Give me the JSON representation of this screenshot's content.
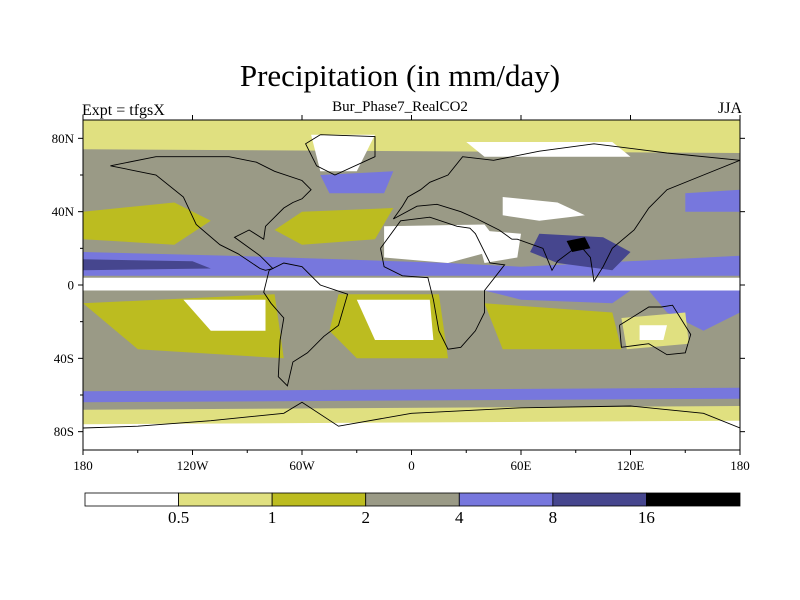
{
  "chart_data": {
    "type": "heatmap",
    "title": "Precipitation (in mm/day)",
    "left_string": "Expt = tfgsX",
    "center_string": "Bur_Phase7_RealCO2",
    "right_string": "JJA",
    "x_axis": {
      "range": [
        -180,
        180
      ],
      "ticks": [
        -180,
        -120,
        -60,
        0,
        60,
        120,
        180
      ],
      "tick_labels": [
        "180",
        "120W",
        "60W",
        "0",
        "60E",
        "120E",
        "180"
      ]
    },
    "y_axis": {
      "range": [
        -90,
        90
      ],
      "ticks": [
        80,
        40,
        0,
        -40,
        -80
      ],
      "tick_labels": [
        "80N",
        "40N",
        "0",
        "40S",
        "80S"
      ]
    },
    "colorbar": {
      "levels": [
        "0.5",
        "1",
        "2",
        "4",
        "8",
        "16"
      ],
      "colors": [
        "#ffffff",
        "#e0e080",
        "#bcbc20",
        "#9a9a86",
        "#7777dd",
        "#46468e",
        "#000000"
      ]
    },
    "base_color": "#9a9a86",
    "regions": [
      {
        "name": "equatorial-dry-band",
        "color": "#ffffff",
        "points": [
          [
            -180,
            4
          ],
          [
            180,
            4
          ],
          [
            180,
            -3
          ],
          [
            -180,
            -3
          ]
        ]
      },
      {
        "name": "itcz-band",
        "color": "#7777dd",
        "points": [
          [
            -180,
            18
          ],
          [
            -100,
            16
          ],
          [
            -40,
            14
          ],
          [
            20,
            12
          ],
          [
            60,
            10
          ],
          [
            180,
            16
          ],
          [
            180,
            5
          ],
          [
            -180,
            5
          ]
        ]
      },
      {
        "name": "itcz-core-pacific",
        "color": "#46468e",
        "points": [
          [
            -180,
            14
          ],
          [
            -120,
            13
          ],
          [
            -110,
            9
          ],
          [
            -180,
            8
          ]
        ]
      },
      {
        "name": "itcz-core-indian",
        "color": "#46468e",
        "points": [
          [
            70,
            28
          ],
          [
            105,
            26
          ],
          [
            120,
            18
          ],
          [
            110,
            8
          ],
          [
            80,
            12
          ],
          [
            65,
            18
          ]
        ]
      },
      {
        "name": "itcz-core-bay",
        "color": "#000000",
        "points": [
          [
            85,
            24
          ],
          [
            95,
            26
          ],
          [
            98,
            20
          ],
          [
            88,
            18
          ]
        ]
      },
      {
        "name": "south-pacific-conv",
        "color": "#7777dd",
        "points": [
          [
            130,
            -3
          ],
          [
            180,
            -3
          ],
          [
            180,
            -15
          ],
          [
            160,
            -25
          ],
          [
            140,
            -15
          ]
        ]
      },
      {
        "name": "south-indian-band",
        "color": "#7777dd",
        "points": [
          [
            40,
            -3
          ],
          [
            120,
            -3
          ],
          [
            110,
            -10
          ],
          [
            60,
            -8
          ]
        ]
      },
      {
        "name": "north-atlantic-dry",
        "color": "#bcbc20",
        "points": [
          [
            -60,
            40
          ],
          [
            -10,
            42
          ],
          [
            -20,
            25
          ],
          [
            -60,
            22
          ],
          [
            -75,
            30
          ]
        ]
      },
      {
        "name": "north-pacific-yellow",
        "color": "#bcbc20",
        "points": [
          [
            -180,
            40
          ],
          [
            -130,
            45
          ],
          [
            -110,
            35
          ],
          [
            -130,
            22
          ],
          [
            -180,
            25
          ]
        ]
      },
      {
        "name": "subtropical-s-atlantic",
        "color": "#bcbc20",
        "points": [
          [
            -40,
            -5
          ],
          [
            15,
            -5
          ],
          [
            20,
            -40
          ],
          [
            -30,
            -40
          ],
          [
            -45,
            -25
          ]
        ]
      },
      {
        "name": "s-atlantic-dry",
        "color": "#ffffff",
        "points": [
          [
            -30,
            -8
          ],
          [
            10,
            -8
          ],
          [
            12,
            -30
          ],
          [
            -20,
            -30
          ]
        ]
      },
      {
        "name": "s-pacific-yellow",
        "color": "#bcbc20",
        "points": [
          [
            -180,
            -10
          ],
          [
            -75,
            -5
          ],
          [
            -70,
            -40
          ],
          [
            -150,
            -35
          ]
        ]
      },
      {
        "name": "s-pacific-dry",
        "color": "#ffffff",
        "points": [
          [
            -125,
            -8
          ],
          [
            -80,
            -8
          ],
          [
            -80,
            -25
          ],
          [
            -110,
            -25
          ]
        ]
      },
      {
        "name": "s-indian-yellow",
        "color": "#bcbc20",
        "points": [
          [
            40,
            -10
          ],
          [
            110,
            -15
          ],
          [
            115,
            -35
          ],
          [
            50,
            -35
          ]
        ]
      },
      {
        "name": "sahara-dry",
        "color": "#ffffff",
        "points": [
          [
            -15,
            32
          ],
          [
            40,
            33
          ],
          [
            50,
            20
          ],
          [
            20,
            12
          ],
          [
            -15,
            15
          ]
        ]
      },
      {
        "name": "arabia-dry",
        "color": "#ffffff",
        "points": [
          [
            35,
            30
          ],
          [
            60,
            28
          ],
          [
            58,
            15
          ],
          [
            40,
            12
          ]
        ]
      },
      {
        "name": "central-asia-dry",
        "color": "#ffffff",
        "points": [
          [
            50,
            48
          ],
          [
            80,
            45
          ],
          [
            95,
            38
          ],
          [
            70,
            35
          ],
          [
            50,
            38
          ]
        ]
      },
      {
        "name": "australia-dry",
        "color": "#e0e080",
        "points": [
          [
            115,
            -18
          ],
          [
            150,
            -15
          ],
          [
            152,
            -32
          ],
          [
            118,
            -35
          ]
        ]
      },
      {
        "name": "australia-core",
        "color": "#ffffff",
        "points": [
          [
            125,
            -22
          ],
          [
            140,
            -22
          ],
          [
            138,
            -30
          ],
          [
            125,
            -30
          ]
        ]
      },
      {
        "name": "southern-storm-track",
        "color": "#7777dd",
        "points": [
          [
            -180,
            -58
          ],
          [
            180,
            -56
          ],
          [
            180,
            -62
          ],
          [
            -180,
            -64
          ]
        ]
      },
      {
        "name": "antarctic-yellow",
        "color": "#e0e080",
        "points": [
          [
            -180,
            -68
          ],
          [
            180,
            -66
          ],
          [
            180,
            -90
          ],
          [
            -180,
            -90
          ]
        ]
      },
      {
        "name": "antarctic-dry",
        "color": "#ffffff",
        "points": [
          [
            -180,
            -76
          ],
          [
            180,
            -74
          ],
          [
            180,
            -90
          ],
          [
            -180,
            -90
          ]
        ]
      },
      {
        "name": "arctic-yellow",
        "color": "#e0e080",
        "points": [
          [
            -180,
            90
          ],
          [
            180,
            90
          ],
          [
            180,
            72
          ],
          [
            -180,
            74
          ]
        ]
      },
      {
        "name": "greenland-dry",
        "color": "#ffffff",
        "points": [
          [
            -55,
            82
          ],
          [
            -20,
            82
          ],
          [
            -30,
            62
          ],
          [
            -50,
            62
          ]
        ]
      },
      {
        "name": "siberia-dry",
        "color": "#ffffff",
        "points": [
          [
            30,
            78
          ],
          [
            110,
            78
          ],
          [
            120,
            70
          ],
          [
            40,
            70
          ]
        ]
      },
      {
        "name": "n-pacific-storm",
        "color": "#7777dd",
        "points": [
          [
            150,
            50
          ],
          [
            180,
            52
          ],
          [
            180,
            40
          ],
          [
            150,
            40
          ]
        ]
      },
      {
        "name": "n-atlantic-storm",
        "color": "#7777dd",
        "points": [
          [
            -50,
            60
          ],
          [
            -10,
            62
          ],
          [
            -15,
            50
          ],
          [
            -45,
            50
          ]
        ]
      }
    ],
    "coastlines": [
      {
        "name": "north-america",
        "points": [
          [
            -165,
            65
          ],
          [
            -140,
            60
          ],
          [
            -125,
            48
          ],
          [
            -118,
            33
          ],
          [
            -105,
            22
          ],
          [
            -95,
            17
          ],
          [
            -83,
            9
          ],
          [
            -80,
            8
          ],
          [
            -76,
            9
          ],
          [
            -83,
            16
          ],
          [
            -90,
            21
          ],
          [
            -97,
            26
          ],
          [
            -89,
            30
          ],
          [
            -81,
            25
          ],
          [
            -80,
            32
          ],
          [
            -70,
            42
          ],
          [
            -65,
            45
          ],
          [
            -60,
            47
          ],
          [
            -55,
            52
          ],
          [
            -60,
            57
          ],
          [
            -75,
            62
          ],
          [
            -85,
            67
          ],
          [
            -100,
            70
          ],
          [
            -120,
            70
          ],
          [
            -140,
            70
          ],
          [
            -165,
            65
          ]
        ]
      },
      {
        "name": "south-america",
        "points": [
          [
            -78,
            8
          ],
          [
            -70,
            12
          ],
          [
            -60,
            10
          ],
          [
            -50,
            0
          ],
          [
            -35,
            -5
          ],
          [
            -40,
            -22
          ],
          [
            -48,
            -28
          ],
          [
            -57,
            -37
          ],
          [
            -65,
            -42
          ],
          [
            -68,
            -55
          ],
          [
            -73,
            -50
          ],
          [
            -72,
            -30
          ],
          [
            -70,
            -18
          ],
          [
            -77,
            -10
          ],
          [
            -81,
            -4
          ],
          [
            -78,
            8
          ]
        ]
      },
      {
        "name": "africa",
        "points": [
          [
            -17,
            20
          ],
          [
            -6,
            35
          ],
          [
            10,
            37
          ],
          [
            25,
            32
          ],
          [
            32,
            31
          ],
          [
            35,
            28
          ],
          [
            43,
            12
          ],
          [
            51,
            11
          ],
          [
            40,
            -3
          ],
          [
            40,
            -15
          ],
          [
            35,
            -25
          ],
          [
            27,
            -34
          ],
          [
            20,
            -35
          ],
          [
            15,
            -25
          ],
          [
            12,
            -8
          ],
          [
            9,
            4
          ],
          [
            -5,
            5
          ],
          [
            -15,
            10
          ],
          [
            -17,
            20
          ]
        ]
      },
      {
        "name": "eurasia",
        "points": [
          [
            -10,
            36
          ],
          [
            -5,
            43
          ],
          [
            -2,
            48
          ],
          [
            5,
            52
          ],
          [
            10,
            56
          ],
          [
            20,
            60
          ],
          [
            28,
            70
          ],
          [
            45,
            68
          ],
          [
            70,
            73
          ],
          [
            100,
            77
          ],
          [
            140,
            72
          ],
          [
            180,
            68
          ],
          [
            160,
            60
          ],
          [
            140,
            52
          ],
          [
            130,
            42
          ],
          [
            122,
            30
          ],
          [
            110,
            20
          ],
          [
            105,
            10
          ],
          [
            100,
            2
          ],
          [
            98,
            15
          ],
          [
            92,
            22
          ],
          [
            80,
            13
          ],
          [
            77,
            8
          ],
          [
            72,
            20
          ],
          [
            58,
            25
          ],
          [
            55,
            25
          ],
          [
            48,
            30
          ],
          [
            36,
            36
          ],
          [
            27,
            40
          ],
          [
            14,
            44
          ],
          [
            3,
            43
          ],
          [
            -10,
            36
          ]
        ]
      },
      {
        "name": "greenland",
        "points": [
          [
            -50,
            82
          ],
          [
            -20,
            81
          ],
          [
            -20,
            70
          ],
          [
            -42,
            60
          ],
          [
            -52,
            65
          ],
          [
            -58,
            77
          ],
          [
            -50,
            82
          ]
        ]
      },
      {
        "name": "australia",
        "points": [
          [
            114,
            -22
          ],
          [
            130,
            -12
          ],
          [
            137,
            -12
          ],
          [
            143,
            -11
          ],
          [
            153,
            -27
          ],
          [
            150,
            -37
          ],
          [
            140,
            -38
          ],
          [
            130,
            -32
          ],
          [
            115,
            -34
          ],
          [
            114,
            -22
          ]
        ]
      },
      {
        "name": "antarctica",
        "points": [
          [
            -180,
            -78
          ],
          [
            -150,
            -77
          ],
          [
            -110,
            -74
          ],
          [
            -70,
            -70
          ],
          [
            -60,
            -64
          ],
          [
            -40,
            -77
          ],
          [
            0,
            -70
          ],
          [
            60,
            -67
          ],
          [
            120,
            -66
          ],
          [
            160,
            -70
          ],
          [
            180,
            -78
          ]
        ]
      }
    ]
  }
}
